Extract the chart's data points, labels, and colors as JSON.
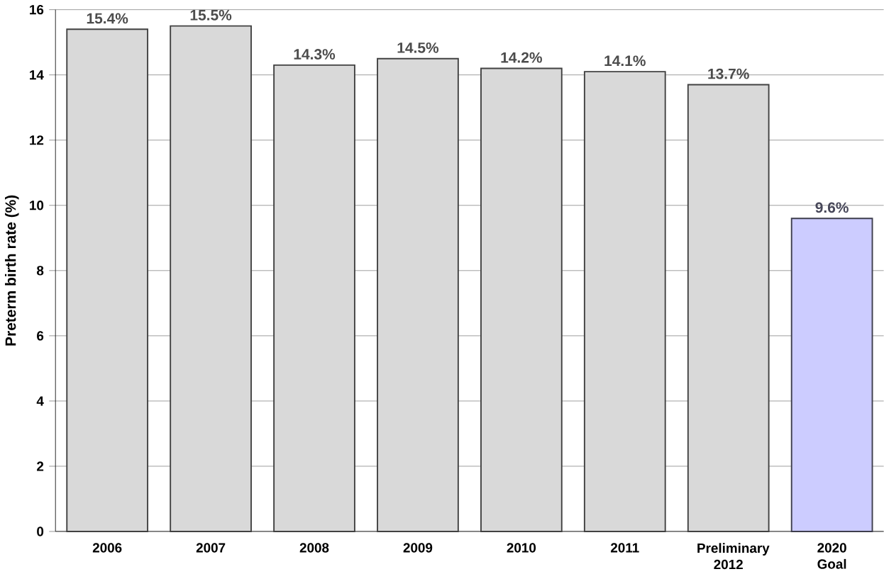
{
  "chart_data": {
    "type": "bar",
    "ylabel": "Preterm birth rate (%)",
    "categories": [
      "2006",
      "2007",
      "2008",
      "2009",
      "2010",
      "2011",
      "Preliminary 2012",
      "2020 Goal"
    ],
    "values": [
      15.4,
      15.5,
      14.3,
      14.5,
      14.2,
      14.1,
      13.7,
      9.6
    ],
    "value_labels": [
      "15.4%",
      "15.5%",
      "14.3%",
      "14.5%",
      "14.2%",
      "14.1%",
      "13.7%",
      "9.6%"
    ],
    "colors": [
      "#d9d9d9",
      "#d9d9d9",
      "#d9d9d9",
      "#d9d9d9",
      "#d9d9d9",
      "#d9d9d9",
      "#d9d9d9",
      "#ccccff"
    ],
    "ylim": [
      0,
      16
    ],
    "yticks": [
      0,
      2,
      4,
      6,
      8,
      10,
      12,
      14,
      16
    ],
    "grid": "y"
  }
}
